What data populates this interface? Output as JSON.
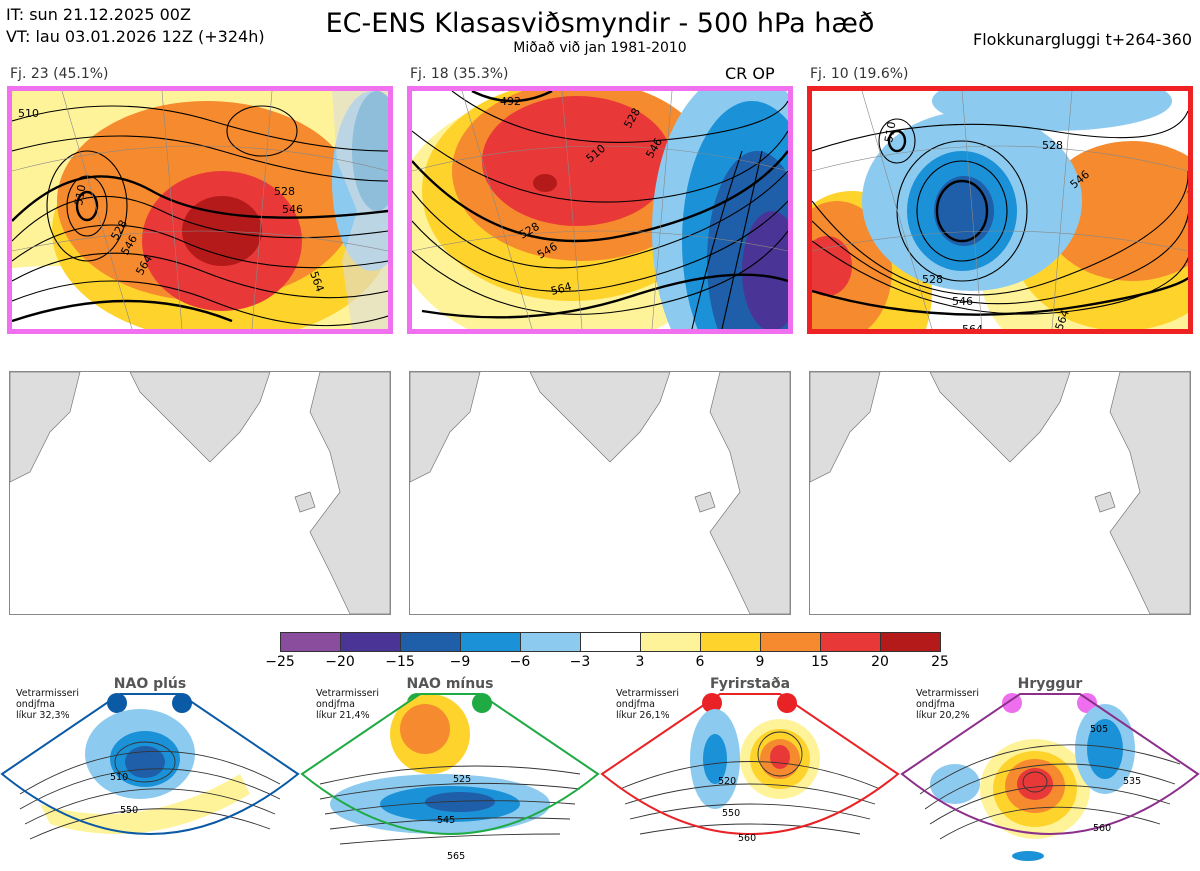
{
  "header": {
    "it_line": "IT: sun 21.12.2025 00Z",
    "vt_line": "VT: lau 03.01.2026 12Z  (+324h)",
    "title": "EC-ENS Klasasviðsmyndir - 500 hPa hæð",
    "subtitle": "Miðað við jan 1981-2010",
    "window": "Flokkunargluggi t+264-360"
  },
  "clusters": [
    {
      "label": "Fj. 23 (45.1%)",
      "contour_labels": [
        "510",
        "528",
        "546",
        "564",
        "510",
        "546",
        "564",
        "528"
      ],
      "extra": ""
    },
    {
      "label": "Fj. 18 (35.3%)",
      "contour_labels": [
        "492",
        "510",
        "528",
        "546",
        "564",
        "528",
        "546"
      ],
      "extra": "CR OP"
    },
    {
      "label": "Fj. 10 (19.6%)",
      "contour_labels": [
        "510",
        "528",
        "546",
        "564",
        "528",
        "546",
        "564"
      ],
      "extra": ""
    }
  ],
  "colorbar": {
    "ticks": [
      "−25",
      "−20",
      "−15",
      "−9",
      "−6",
      "−3",
      "3",
      "6",
      "9",
      "15",
      "20",
      "25"
    ],
    "colors": [
      "#8a4c9c",
      "#4a3596",
      "#1f5ea8",
      "#1b91d8",
      "#8ccbef",
      "#ffffff",
      "#fff39a",
      "#fed42c",
      "#f68a2e",
      "#e83838",
      "#b51a1a"
    ]
  },
  "regimes": [
    {
      "name": "NAO plús",
      "info": [
        "Vetrarmisseri",
        "ondjfma",
        "líkur 32,3%"
      ],
      "color": "#0b5aa5",
      "labels": [
        "510",
        "550"
      ]
    },
    {
      "name": "NAO mínus",
      "info": [
        "Vetrarmisseri",
        "ondjfma",
        "líkur 21,4%"
      ],
      "color": "#1faa44",
      "labels": [
        "525",
        "545",
        "565"
      ]
    },
    {
      "name": "Fyrirstaða",
      "info": [
        "Vetrarmisseri",
        "ondjfma",
        "líkur 26,1%"
      ],
      "color": "#e92225",
      "labels": [
        "520",
        "550",
        "560"
      ]
    },
    {
      "name": "Hryggur",
      "info": [
        "Vetrarmisseri",
        "ondjfma",
        "líkur 20,2%"
      ],
      "color": "#ee6fee",
      "labels": [
        "505",
        "535",
        "560"
      ]
    }
  ]
}
